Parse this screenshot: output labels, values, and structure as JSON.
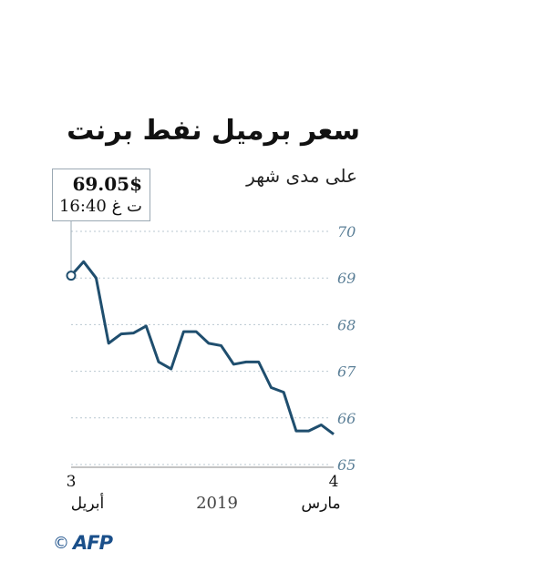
{
  "chart_data": {
    "type": "line",
    "title": "سعر برميل نفط برنت",
    "subtitle": "على مدى شهر",
    "yticks": [
      "70",
      "69",
      "68",
      "67",
      "66",
      "65"
    ],
    "ylim": [
      65,
      70.2
    ],
    "grid": true,
    "x_labels": {
      "start_day": "3",
      "start_month": "أبريل",
      "end_day": "4",
      "end_month": "مارس",
      "year": "2019"
    },
    "series": [
      {
        "values": [
          69.05,
          69.35,
          69.0,
          67.6,
          67.8,
          67.82,
          67.97,
          67.2,
          67.05,
          67.85,
          67.85,
          67.6,
          67.55,
          67.15,
          67.2,
          67.2,
          66.65,
          66.55,
          65.72,
          65.72,
          65.85,
          65.65
        ],
        "color": "#1f4e6e"
      }
    ],
    "callout": {
      "price": "69.05$",
      "time": "16:40 ت غ"
    }
  },
  "credit": {
    "copyright": "©",
    "agency": "AFP"
  }
}
